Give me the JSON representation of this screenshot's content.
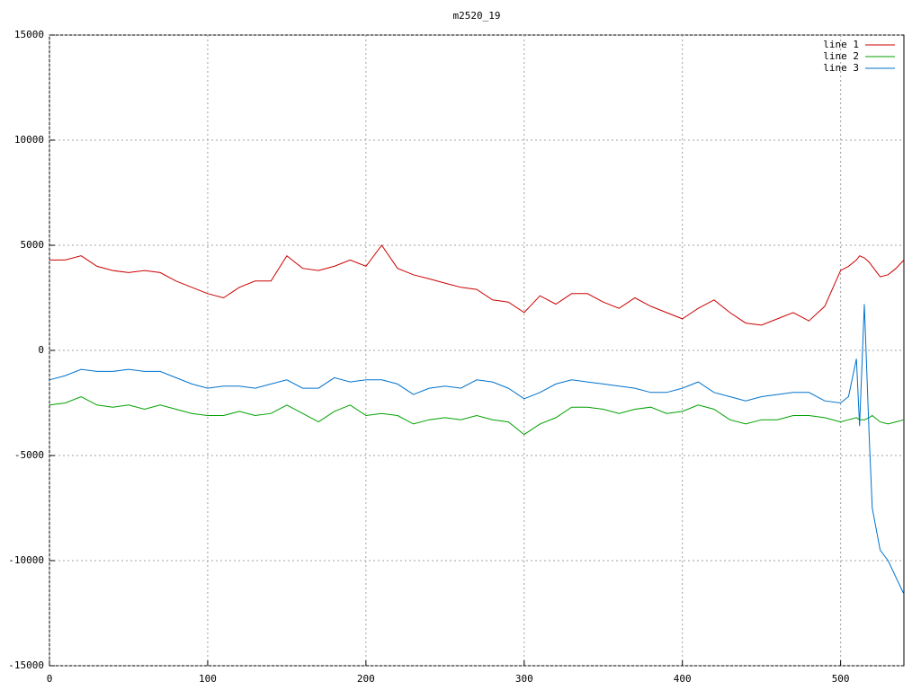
{
  "chart_data": {
    "type": "line",
    "title": "m2520_19",
    "x": [
      0,
      10,
      20,
      30,
      40,
      50,
      60,
      70,
      80,
      90,
      100,
      110,
      120,
      130,
      140,
      150,
      160,
      170,
      180,
      190,
      200,
      210,
      220,
      230,
      240,
      250,
      260,
      270,
      280,
      290,
      300,
      310,
      320,
      330,
      340,
      350,
      360,
      370,
      380,
      390,
      400,
      410,
      420,
      430,
      440,
      450,
      460,
      470,
      480,
      490,
      500,
      505,
      510,
      512,
      515,
      518,
      520,
      525,
      530,
      535,
      540
    ],
    "series": [
      {
        "name": "line 1",
        "color": "#cc0000",
        "values": [
          4300,
          4300,
          4500,
          4000,
          3800,
          3700,
          3800,
          3700,
          3300,
          3000,
          2700,
          2500,
          3000,
          3300,
          3300,
          4500,
          3900,
          3800,
          4000,
          4300,
          4000,
          5000,
          3900,
          3600,
          3400,
          3200,
          3000,
          2900,
          2400,
          2300,
          1800,
          2600,
          2200,
          2700,
          2700,
          2300,
          2000,
          2500,
          2100,
          1800,
          1500,
          2000,
          2400,
          1800,
          1300,
          1200,
          1500,
          1800,
          1400,
          2100,
          3800,
          4000,
          4300,
          4500,
          4400,
          4200,
          4000,
          3500,
          3600,
          3900,
          4300
        ]
      },
      {
        "name": "line 2",
        "color": "#00a000",
        "values": [
          -2600,
          -2500,
          -2200,
          -2600,
          -2700,
          -2600,
          -2800,
          -2600,
          -2800,
          -3000,
          -3100,
          -3100,
          -2900,
          -3100,
          -3000,
          -2600,
          -3000,
          -3400,
          -2900,
          -2600,
          -3100,
          -3000,
          -3100,
          -3500,
          -3300,
          -3200,
          -3300,
          -3100,
          -3300,
          -3400,
          -4000,
          -3500,
          -3200,
          -2700,
          -2700,
          -2800,
          -3000,
          -2800,
          -2700,
          -3000,
          -2900,
          -2600,
          -2800,
          -3300,
          -3500,
          -3300,
          -3300,
          -3100,
          -3100,
          -3200,
          -3400,
          -3300,
          -3200,
          -3300,
          -3300,
          -3200,
          -3100,
          -3400,
          -3500,
          -3400,
          -3300
        ]
      },
      {
        "name": "line 3",
        "color": "#0072cc",
        "values": [
          -1400,
          -1200,
          -900,
          -1000,
          -1000,
          -900,
          -1000,
          -1000,
          -1300,
          -1600,
          -1800,
          -1700,
          -1700,
          -1800,
          -1600,
          -1400,
          -1800,
          -1800,
          -1300,
          -1500,
          -1400,
          -1400,
          -1600,
          -2100,
          -1800,
          -1700,
          -1800,
          -1400,
          -1500,
          -1800,
          -2300,
          -2000,
          -1600,
          -1400,
          -1500,
          -1600,
          -1700,
          -1800,
          -2000,
          -2000,
          -1800,
          -1500,
          -2000,
          -2200,
          -2400,
          -2200,
          -2100,
          -2000,
          -2000,
          -2400,
          -2500,
          -2200,
          -400,
          -3600,
          2200,
          -4000,
          -7500,
          -9500,
          -10000,
          -10800,
          -11600
        ]
      }
    ],
    "xlim": [
      0,
      540
    ],
    "xticks": [
      0,
      100,
      200,
      300,
      400,
      500
    ],
    "ylim": [
      -15000,
      15000
    ],
    "yticks": [
      -15000,
      -10000,
      -5000,
      0,
      5000,
      10000,
      15000
    ],
    "grid": true,
    "legend": "top-right"
  }
}
